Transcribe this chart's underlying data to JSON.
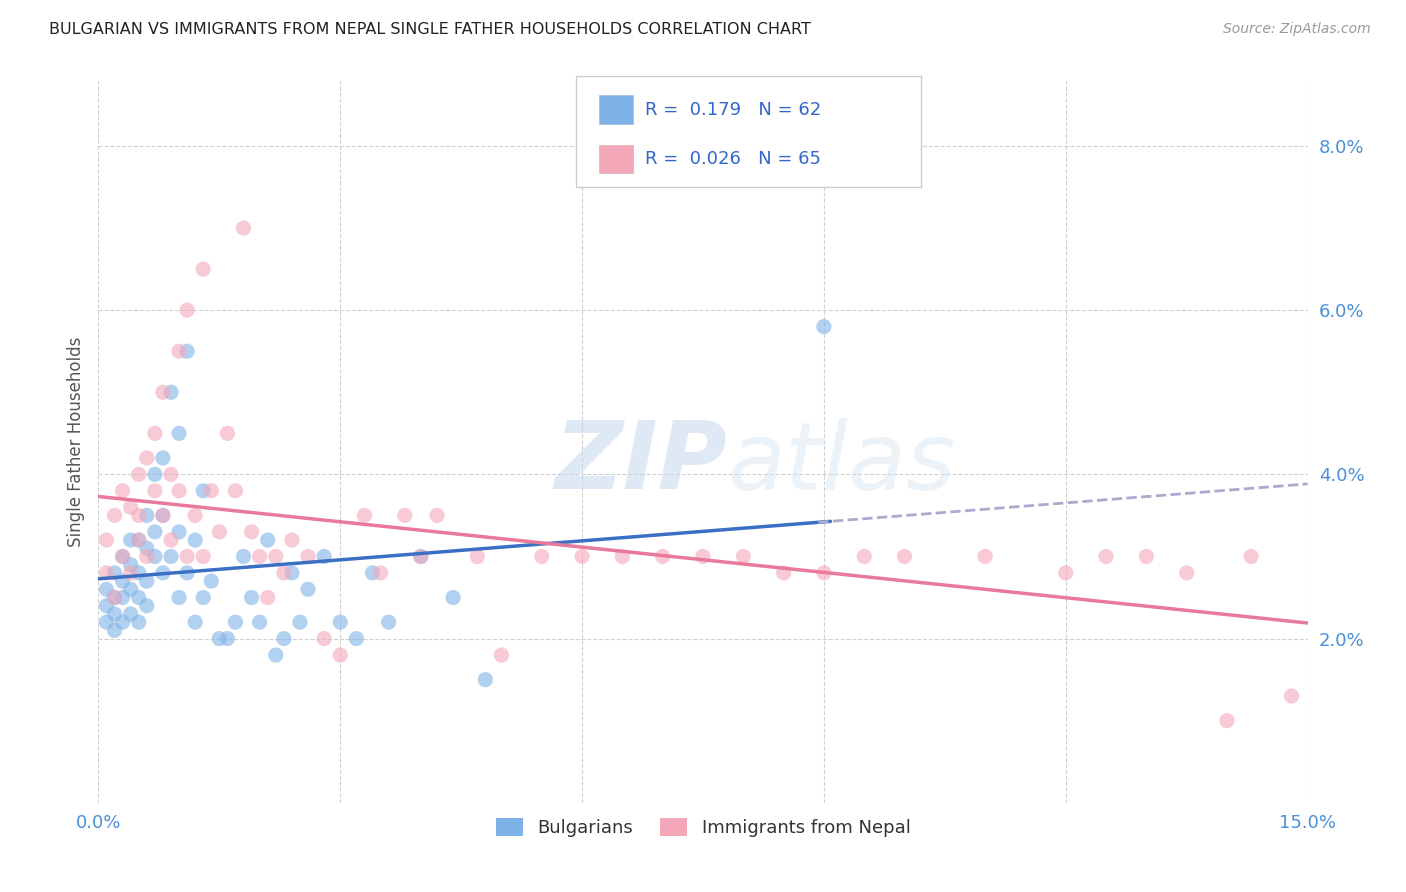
{
  "title": "BULGARIAN VS IMMIGRANTS FROM NEPAL SINGLE FATHER HOUSEHOLDS CORRELATION CHART",
  "source": "Source: ZipAtlas.com",
  "ylabel": "Single Father Households",
  "xlim": [
    0.0,
    0.15
  ],
  "ylim": [
    0.0,
    0.088
  ],
  "bulgarians_color": "#7fb3e8",
  "nepal_color": "#f4a7b9",
  "trend_blue": "#3a6fc4",
  "trend_pink": "#e8799a",
  "trend_dashed_color": "#aaaacc",
  "R_bulgarian": 0.179,
  "N_bulgarian": 62,
  "R_nepal": 0.026,
  "N_nepal": 65,
  "legend_labels": [
    "Bulgarians",
    "Immigrants from Nepal"
  ],
  "bulgarians_x": [
    0.001,
    0.001,
    0.001,
    0.002,
    0.002,
    0.002,
    0.002,
    0.003,
    0.003,
    0.003,
    0.003,
    0.004,
    0.004,
    0.004,
    0.004,
    0.005,
    0.005,
    0.005,
    0.005,
    0.006,
    0.006,
    0.006,
    0.006,
    0.007,
    0.007,
    0.007,
    0.008,
    0.008,
    0.008,
    0.009,
    0.009,
    0.01,
    0.01,
    0.01,
    0.011,
    0.011,
    0.012,
    0.012,
    0.013,
    0.013,
    0.014,
    0.015,
    0.016,
    0.017,
    0.018,
    0.019,
    0.02,
    0.021,
    0.022,
    0.023,
    0.024,
    0.025,
    0.026,
    0.028,
    0.03,
    0.032,
    0.034,
    0.036,
    0.04,
    0.044,
    0.048,
    0.09
  ],
  "bulgarians_y": [
    0.022,
    0.024,
    0.026,
    0.021,
    0.023,
    0.025,
    0.028,
    0.022,
    0.025,
    0.027,
    0.03,
    0.023,
    0.026,
    0.029,
    0.032,
    0.022,
    0.025,
    0.028,
    0.032,
    0.024,
    0.027,
    0.031,
    0.035,
    0.03,
    0.04,
    0.033,
    0.028,
    0.035,
    0.042,
    0.03,
    0.05,
    0.025,
    0.033,
    0.045,
    0.028,
    0.055,
    0.022,
    0.032,
    0.025,
    0.038,
    0.027,
    0.02,
    0.02,
    0.022,
    0.03,
    0.025,
    0.022,
    0.032,
    0.018,
    0.02,
    0.028,
    0.022,
    0.026,
    0.03,
    0.022,
    0.02,
    0.028,
    0.022,
    0.03,
    0.025,
    0.015,
    0.058
  ],
  "nepal_x": [
    0.001,
    0.001,
    0.002,
    0.002,
    0.003,
    0.003,
    0.004,
    0.004,
    0.005,
    0.005,
    0.005,
    0.006,
    0.006,
    0.007,
    0.007,
    0.008,
    0.008,
    0.009,
    0.009,
    0.01,
    0.01,
    0.011,
    0.011,
    0.012,
    0.013,
    0.013,
    0.014,
    0.015,
    0.016,
    0.017,
    0.018,
    0.019,
    0.02,
    0.021,
    0.022,
    0.023,
    0.024,
    0.026,
    0.028,
    0.03,
    0.033,
    0.035,
    0.038,
    0.04,
    0.042,
    0.047,
    0.05,
    0.055,
    0.06,
    0.065,
    0.07,
    0.075,
    0.08,
    0.085,
    0.09,
    0.095,
    0.1,
    0.11,
    0.12,
    0.125,
    0.13,
    0.135,
    0.14,
    0.143,
    0.148
  ],
  "nepal_y": [
    0.028,
    0.032,
    0.025,
    0.035,
    0.03,
    0.038,
    0.028,
    0.036,
    0.032,
    0.04,
    0.035,
    0.03,
    0.042,
    0.038,
    0.045,
    0.035,
    0.05,
    0.032,
    0.04,
    0.055,
    0.038,
    0.03,
    0.06,
    0.035,
    0.03,
    0.065,
    0.038,
    0.033,
    0.045,
    0.038,
    0.07,
    0.033,
    0.03,
    0.025,
    0.03,
    0.028,
    0.032,
    0.03,
    0.02,
    0.018,
    0.035,
    0.028,
    0.035,
    0.03,
    0.035,
    0.03,
    0.018,
    0.03,
    0.03,
    0.03,
    0.03,
    0.03,
    0.03,
    0.028,
    0.028,
    0.03,
    0.03,
    0.03,
    0.028,
    0.03,
    0.03,
    0.028,
    0.01,
    0.03,
    0.013
  ]
}
